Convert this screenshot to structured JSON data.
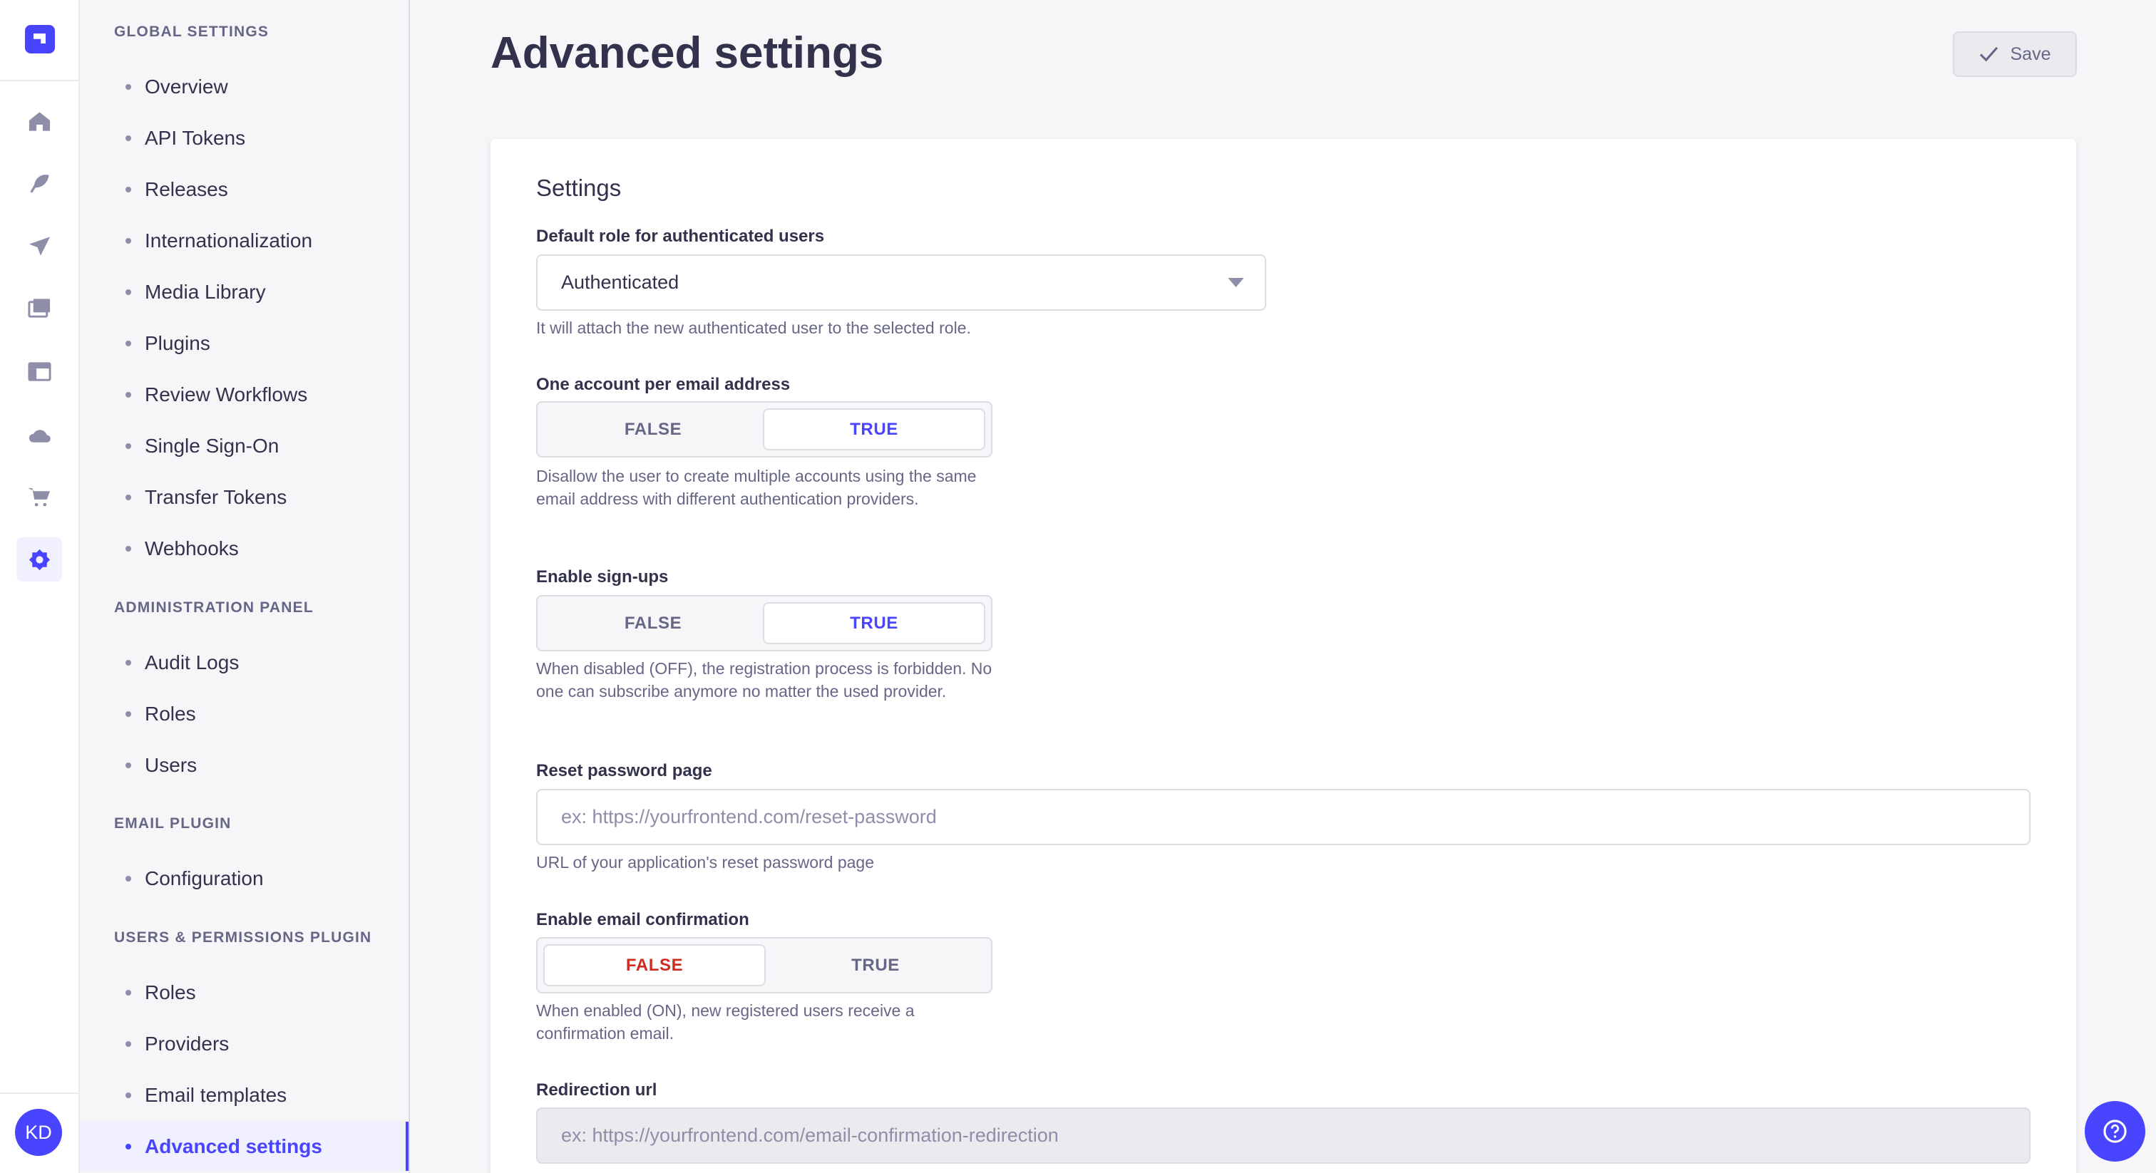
{
  "rail": {
    "icons": [
      "home-icon",
      "feather-icon",
      "paper-plane-icon",
      "media-icon",
      "layout-icon",
      "cloud-icon",
      "cart-icon",
      "gear-icon"
    ],
    "avatar": "KD",
    "accent": "#4945ff"
  },
  "subnav": {
    "sections": [
      {
        "title": "Global Settings",
        "items": [
          "Overview",
          "API Tokens",
          "Releases",
          "Internationalization",
          "Media Library",
          "Plugins",
          "Review Workflows",
          "Single Sign-On",
          "Transfer Tokens",
          "Webhooks"
        ]
      },
      {
        "title": "Administration Panel",
        "items": [
          "Audit Logs",
          "Roles",
          "Users"
        ]
      },
      {
        "title": "Email Plugin",
        "items": [
          "Configuration"
        ]
      },
      {
        "title": "Users & Permissions Plugin",
        "items": [
          "Roles",
          "Providers",
          "Email templates",
          "Advanced settings"
        ]
      }
    ],
    "active": "Advanced settings"
  },
  "header": {
    "title": "Advanced settings",
    "save_label": "Save"
  },
  "form": {
    "heading": "Settings",
    "default_role": {
      "label": "Default role for authenticated users",
      "value": "Authenticated",
      "hint": "It will attach the new authenticated user to the selected role."
    },
    "unique_email": {
      "label": "One account per email address",
      "false_label": "FALSE",
      "true_label": "TRUE",
      "value": true,
      "hint": "Disallow the user to create multiple accounts using the same email address with different authentication providers."
    },
    "allow_register": {
      "label": "Enable sign-ups",
      "false_label": "FALSE",
      "true_label": "TRUE",
      "value": true,
      "hint": "When disabled (OFF), the registration process is forbidden. No one can subscribe anymore no matter the used provider."
    },
    "reset_password": {
      "label": "Reset password page",
      "placeholder": "ex: https://yourfrontend.com/reset-password",
      "hint": "URL of your application's reset password page"
    },
    "email_confirmation": {
      "label": "Enable email confirmation",
      "false_label": "FALSE",
      "true_label": "TRUE",
      "value": false,
      "hint": "When enabled (ON), new registered users receive a confirmation email."
    },
    "redirection": {
      "label": "Redirection url",
      "placeholder": "ex: https://yourfrontend.com/email-confirmation-redirection"
    }
  }
}
